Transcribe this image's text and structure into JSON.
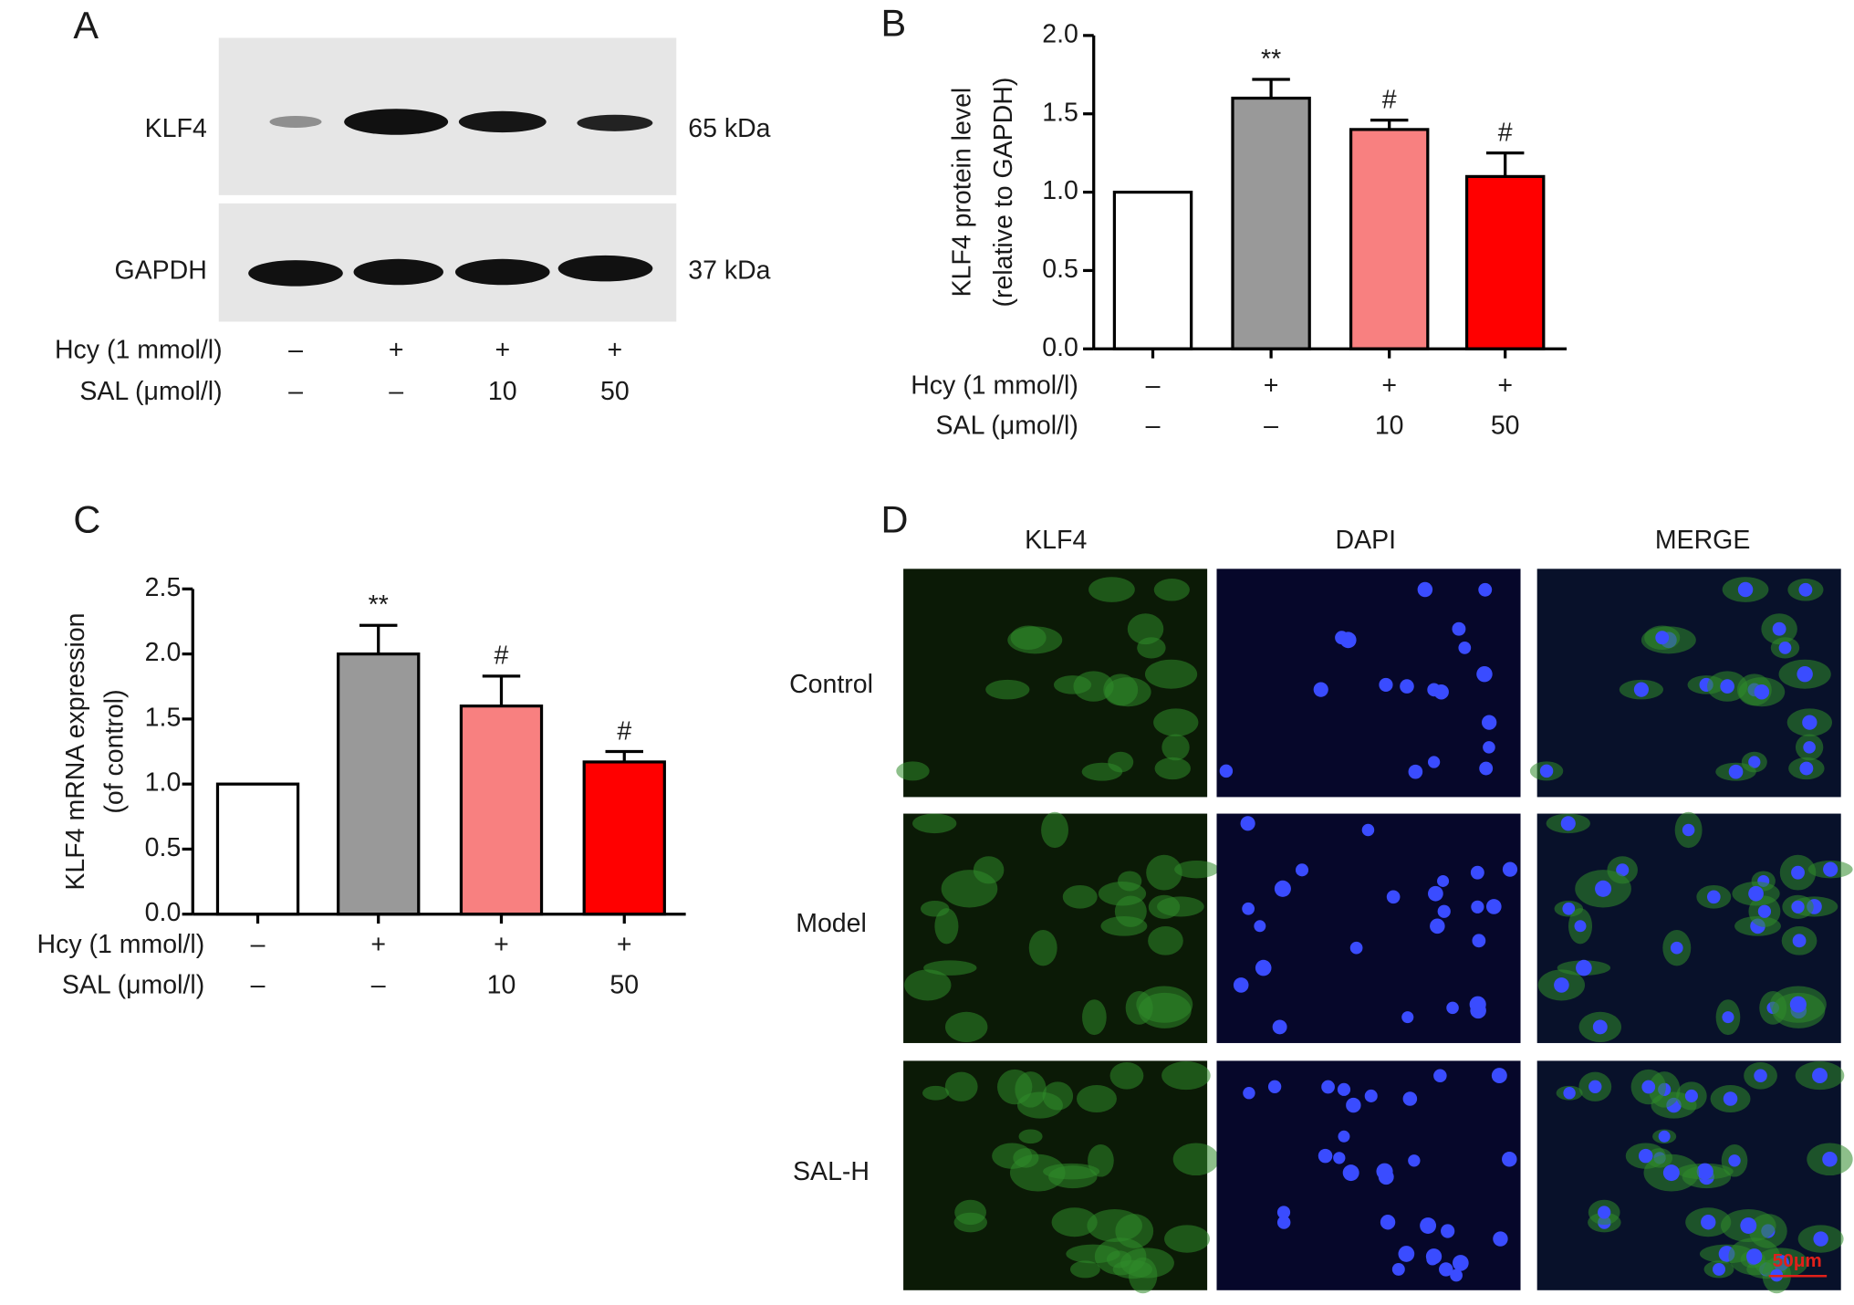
{
  "western_blot": {
    "panel_label": "A",
    "bands": [
      {
        "name": "KLF4",
        "size": "65 kDa"
      },
      {
        "name": "GAPDH",
        "size": "37 kDa"
      }
    ],
    "condition_rows": [
      {
        "name": "Hcy (1 mmol/l)",
        "values": [
          "–",
          "+",
          "+",
          "+"
        ]
      },
      {
        "name": "SAL (μmol/l)",
        "values": [
          "–",
          "–",
          "10",
          "50"
        ]
      }
    ]
  },
  "chart_data": [
    {
      "type": "bar",
      "panel_label": "B",
      "ylabel": [
        "KLF4 protein level",
        "(relative to GAPDH)"
      ],
      "values": [
        1.0,
        1.6,
        1.4,
        1.1
      ],
      "errors": [
        null,
        0.12,
        0.06,
        0.15
      ],
      "colors": [
        "#ffffff",
        "#999999",
        "#f88080",
        "#ff0000"
      ],
      "annotations": [
        null,
        "**",
        "#",
        "#"
      ],
      "ylim": [
        0,
        2.0
      ],
      "yticks": [
        {
          "value": 0,
          "label": "0.0"
        },
        {
          "value": 0.5,
          "label": "0.5"
        },
        {
          "value": 1,
          "label": "1.0"
        },
        {
          "value": 1.5,
          "label": "1.5"
        },
        {
          "value": 2,
          "label": "2.0"
        }
      ],
      "condition_rows": [
        {
          "name": "Hcy (1 mmol/l)",
          "values": [
            "–",
            "+",
            "+",
            "+"
          ]
        },
        {
          "name": "SAL (μmol/l)",
          "values": [
            "–",
            "–",
            "10",
            "50"
          ]
        }
      ]
    },
    {
      "type": "bar",
      "panel_label": "C",
      "ylabel": [
        "KLF4 mRNA expression",
        "(of control)"
      ],
      "values": [
        1.0,
        2.0,
        1.6,
        1.17
      ],
      "errors": [
        null,
        0.22,
        0.23,
        0.08
      ],
      "colors": [
        "#ffffff",
        "#999999",
        "#f88080",
        "#ff0000"
      ],
      "annotations": [
        null,
        "**",
        "#",
        "#"
      ],
      "ylim": [
        0,
        2.5
      ],
      "yticks": [
        {
          "value": 0,
          "label": "0.0"
        },
        {
          "value": 0.5,
          "label": "0.5"
        },
        {
          "value": 1,
          "label": "1.0"
        },
        {
          "value": 1.5,
          "label": "1.5"
        },
        {
          "value": 2,
          "label": "2.0"
        },
        {
          "value": 2.5,
          "label": "2.5"
        }
      ],
      "condition_rows": [
        {
          "name": "Hcy (1 mmol/l)",
          "values": [
            "–",
            "+",
            "+",
            "+"
          ]
        },
        {
          "name": "SAL (μmol/l)",
          "values": [
            "–",
            "–",
            "10",
            "50"
          ]
        }
      ]
    }
  ],
  "microscopy": {
    "panel_label": "D",
    "columns": [
      "KLF4",
      "DAPI",
      "MERGE"
    ],
    "rows": [
      "Control",
      "Model",
      "SAL-H"
    ],
    "scale_bar": "50μm"
  }
}
